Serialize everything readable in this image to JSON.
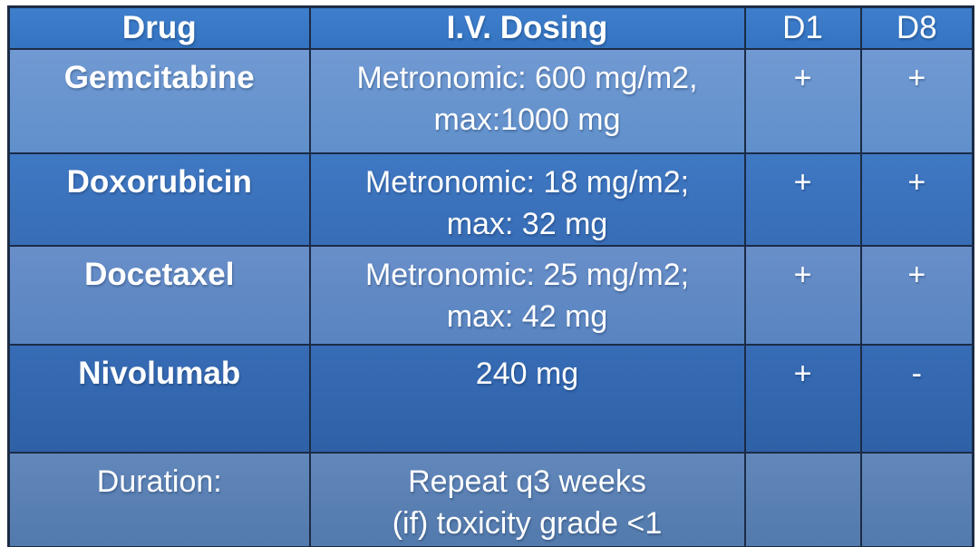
{
  "table": {
    "columns": [
      {
        "label": "Drug"
      },
      {
        "label": "I.V. Dosing"
      },
      {
        "label": "D1"
      },
      {
        "label": "D8"
      }
    ],
    "rows": [
      {
        "drug": "Gemcitabine",
        "dosing_line1": "Metronomic: 600 mg/m2,",
        "dosing_line2": "max:1000 mg",
        "d1": "+",
        "d8": "+"
      },
      {
        "drug": "Doxorubicin",
        "dosing_line1": "Metronomic: 18 mg/m2;",
        "dosing_line2": "max: 32 mg",
        "d1": "+",
        "d8": "+"
      },
      {
        "drug": "Docetaxel",
        "dosing_line1": "Metronomic: 25 mg/m2;",
        "dosing_line2": "max: 42 mg",
        "d1": "+",
        "d8": "+"
      },
      {
        "drug": "Nivolumab",
        "dosing_line1": "240 mg",
        "dosing_line2": "",
        "d1": "+",
        "d8": "-"
      },
      {
        "drug": "Duration:",
        "dosing_line1": "Repeat q3 weeks",
        "dosing_line2": "(if) toxicity grade <1",
        "d1": "",
        "d8": ""
      }
    ]
  },
  "colors": {
    "header_bg": "#3879C8",
    "row_gemcitabine_bg": "#6593CE",
    "row_doxorubicin_bg": "#3A72BD",
    "row_docetaxel_bg": "#5E8BC6",
    "row_nivolumab_bg": "#3165AD",
    "row_duration_bg": "#5981B4",
    "border": "#1B2B45",
    "text": "#FFFFFF",
    "page_background": "#FFFFFF"
  }
}
